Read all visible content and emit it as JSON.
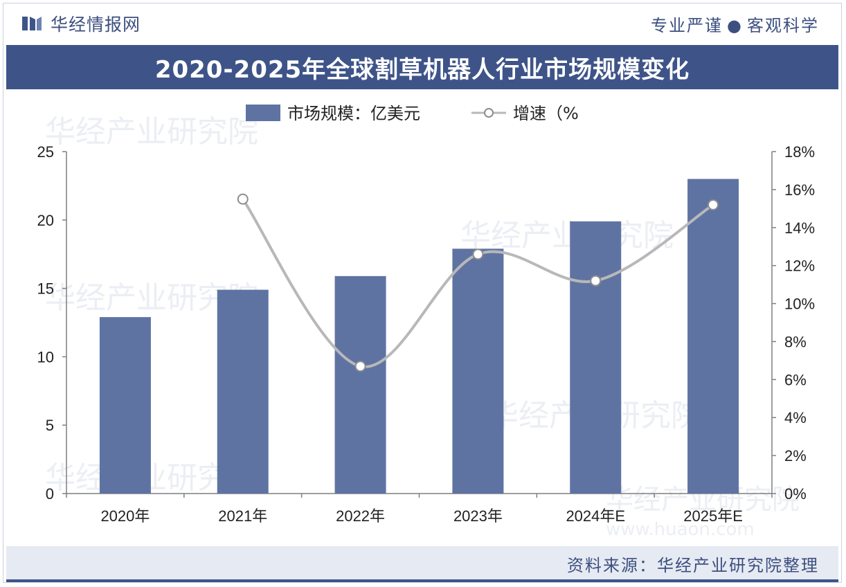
{
  "header": {
    "brand": "华经情报网",
    "slogan_left": "专业严谨",
    "slogan_dot": "●",
    "slogan_right": "客观科学"
  },
  "title": "2020-2025年全球割草机器人行业市场规模变化",
  "source": "资料来源：华经产业研究院整理",
  "watermarks": [
    "华经产业研究院",
    "www.huaon.com"
  ],
  "colors": {
    "bar": "#5f73a3",
    "line": "#b8b8b8",
    "title_bg": "#3e5489",
    "brand_text": "#3c4f80"
  },
  "chart_data": {
    "type": "bar",
    "categories": [
      "2020年",
      "2021年",
      "2022年",
      "2023年",
      "2024年E",
      "2025年E"
    ],
    "series": [
      {
        "name": "市场规模：亿美元",
        "type": "bar",
        "axis": "left",
        "values": [
          12.9,
          14.9,
          15.9,
          17.9,
          19.9,
          23.0
        ]
      },
      {
        "name": "增速（%",
        "type": "line",
        "axis": "right",
        "values": [
          null,
          15.5,
          6.7,
          12.6,
          11.2,
          15.2
        ]
      }
    ],
    "ylim": [
      0,
      25
    ],
    "y_ticks": [
      "0",
      "5",
      "10",
      "15",
      "20",
      "25"
    ],
    "y2lim": [
      0,
      18
    ],
    "y2_ticks": [
      "0%",
      "2%",
      "4%",
      "6%",
      "8%",
      "10%",
      "12%",
      "14%",
      "16%",
      "18%"
    ],
    "legend_position": "top-center",
    "grid": false
  }
}
